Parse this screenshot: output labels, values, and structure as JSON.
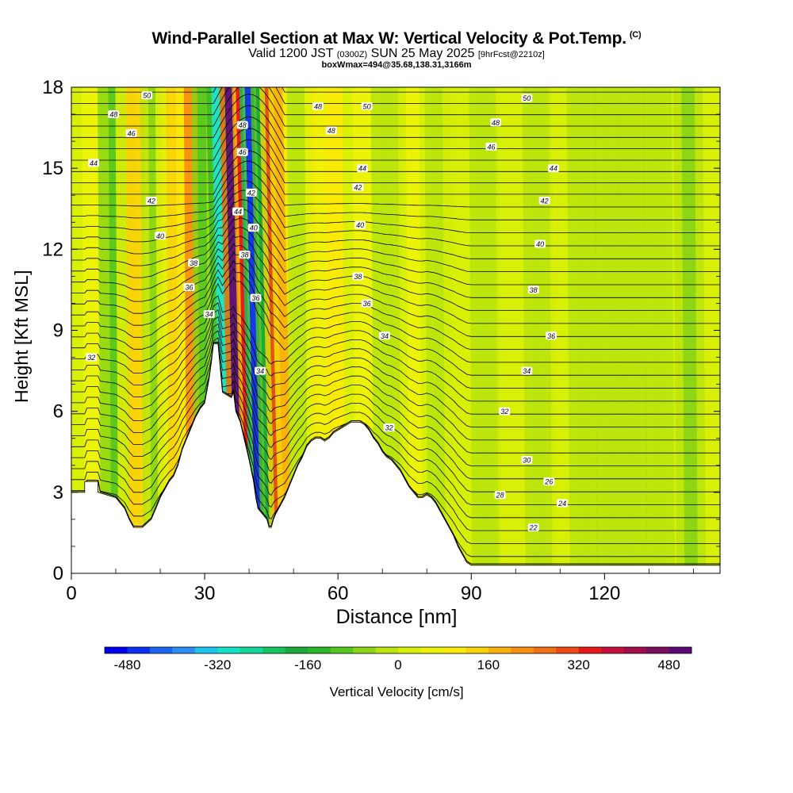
{
  "chart_data": {
    "type": "heatmap",
    "title": "Wind-Parallel Section at Max W: Vertical Velocity & Pot.Temp.",
    "title_mark": "(C)",
    "subtitle": {
      "pre": "Valid 1200 JST",
      "zulu": "(0300Z)",
      "date": "SUN 25 May 2025",
      "fcst": "[9hrFcst@2210z]"
    },
    "box_note": "boxWmax=494@35.68,138.31,3166m",
    "xlabel": "Distance [nm]",
    "ylabel": "Height [Kft MSL]",
    "xlim": [
      0,
      146
    ],
    "ylim": [
      0,
      18
    ],
    "x_ticks": [
      0,
      30,
      60,
      90,
      120
    ],
    "y_ticks": [
      0,
      3,
      6,
      9,
      12,
      15,
      18
    ],
    "terrain": {
      "x": [
        0,
        3,
        3,
        6,
        6,
        10,
        12,
        13,
        14,
        16,
        18,
        19,
        20,
        21,
        22,
        23,
        24,
        25,
        26,
        27,
        28,
        29,
        30,
        31,
        31.5,
        32,
        32.5,
        33,
        34,
        36,
        36.5,
        37,
        38,
        39,
        40,
        41,
        41.5,
        42,
        43,
        44,
        44.5,
        45,
        45.5,
        46,
        47,
        48,
        49,
        50,
        51,
        52,
        53,
        54,
        55,
        56,
        57,
        58,
        59,
        60,
        61,
        62,
        63,
        64,
        65,
        66,
        67,
        68,
        69,
        70,
        71,
        72,
        73,
        74,
        75,
        76,
        77,
        78,
        79,
        80,
        81,
        82,
        83,
        84,
        85,
        86,
        87,
        88,
        89,
        90,
        91,
        95,
        100,
        105,
        110,
        115,
        120,
        125,
        128,
        129,
        130,
        131,
        132,
        133,
        134,
        135,
        136,
        137,
        138,
        139,
        140,
        141,
        146
      ],
      "y": [
        3.0,
        3.0,
        3.4,
        3.4,
        3.0,
        2.8,
        2.4,
        2.0,
        1.7,
        1.7,
        2.0,
        2.4,
        2.8,
        3.1,
        3.4,
        3.6,
        4.0,
        4.6,
        5.0,
        5.4,
        5.8,
        6.1,
        6.3,
        7.2,
        7.8,
        8.5,
        8.5,
        8.5,
        6.7,
        6.5,
        6.7,
        6.0,
        5.6,
        4.9,
        4.2,
        3.4,
        2.8,
        2.4,
        2.2,
        2.0,
        1.7,
        1.7,
        2.0,
        2.2,
        2.5,
        2.8,
        3.2,
        3.6,
        4.0,
        4.3,
        4.7,
        4.9,
        5.0,
        5.0,
        4.9,
        5.0,
        5.2,
        5.3,
        5.4,
        5.5,
        5.6,
        5.6,
        5.6,
        5.5,
        5.3,
        5.0,
        4.8,
        4.5,
        4.3,
        4.2,
        4.0,
        3.8,
        3.5,
        3.2,
        3.0,
        2.8,
        2.8,
        2.9,
        2.8,
        2.6,
        2.3,
        2.0,
        1.7,
        1.4,
        1.0,
        0.7,
        0.4,
        0.3,
        0.3,
        0.3,
        0.3,
        0.3,
        0.3,
        0.3,
        0.3,
        0.3,
        0.3,
        0.3,
        0.3,
        0.3,
        0.3,
        0.3,
        0.3,
        0.3,
        0.3,
        0.3,
        0.3,
        0.3,
        0.3,
        0.3,
        0.3,
        0.3,
        0.3
      ]
    },
    "velocity_bands": [
      {
        "x": 3,
        "w": 4,
        "value": 40
      },
      {
        "x": 9,
        "w": 4,
        "value": -110
      },
      {
        "x": 13,
        "w": 4,
        "value": 150
      },
      {
        "x": 18,
        "w": 3,
        "value": -60
      },
      {
        "x": 22,
        "w": 4,
        "value": 120
      },
      {
        "x": 26,
        "w": 3,
        "value": 200
      },
      {
        "x": 29,
        "w": 2,
        "value": -120
      },
      {
        "x": 34,
        "w": 2,
        "value": -300
      },
      {
        "x": 37,
        "w": 2,
        "value": 480
      },
      {
        "x": 39.5,
        "w": 1.5,
        "value": 330
      },
      {
        "x": 41.5,
        "w": 2,
        "value": -460
      },
      {
        "x": 44,
        "w": 2,
        "value": -200
      },
      {
        "x": 46,
        "w": 2,
        "value": 300
      },
      {
        "x": 48,
        "w": 2,
        "value": 180
      },
      {
        "x": 51,
        "w": 3,
        "value": -40
      },
      {
        "x": 55,
        "w": 3,
        "value": 80
      },
      {
        "x": 58,
        "w": 4,
        "value": 90
      },
      {
        "x": 64,
        "w": 4,
        "value": 50
      },
      {
        "x": 70,
        "w": 3,
        "value": -20
      },
      {
        "x": 76,
        "w": 3,
        "value": 40
      },
      {
        "x": 82,
        "w": 3,
        "value": -30
      },
      {
        "x": 86,
        "w": 3,
        "value": 20
      },
      {
        "x": 92,
        "w": 3,
        "value": -40
      },
      {
        "x": 98,
        "w": 3,
        "value": 20
      },
      {
        "x": 104,
        "w": 3,
        "value": -40
      },
      {
        "x": 110,
        "w": 3,
        "value": 20
      },
      {
        "x": 114,
        "w": 3,
        "value": -30
      },
      {
        "x": 120,
        "w": 3,
        "value": -20
      },
      {
        "x": 125,
        "w": 3,
        "value": -40
      },
      {
        "x": 131,
        "w": 3,
        "value": -20
      },
      {
        "x": 138,
        "w": 3,
        "value": -50
      }
    ],
    "theta_contours": [
      {
        "base": 4.2,
        "label": "26",
        "lx": 96,
        "rx": 108,
        "ry": 2.7
      },
      {
        "base": 5.0,
        "label": "32",
        "lx": 72,
        "rx": 97,
        "ry": 5.7
      },
      {
        "base": 6.0,
        "label": "32",
        "lx": 74,
        "rx": 97,
        "ry": 5.7
      },
      {
        "base": 8.0,
        "label": "32",
        "lx": 4,
        "rx": 103,
        "ry": 8.1
      },
      {
        "base": 9.0,
        "label": "34",
        "lx": 28,
        "rx": 102,
        "ry": 7.3
      },
      {
        "base": 10.2,
        "label": "36",
        "lx": 28,
        "rx": 108,
        "ry": 8.5
      },
      {
        "base": 11.0,
        "label": "38",
        "lx": 28,
        "rx": 108,
        "ry": 9.3
      },
      {
        "base": 12.5,
        "label": "40",
        "lx": 20,
        "rx": 105,
        "ry": 11.6
      },
      {
        "base": 13.8,
        "label": "42",
        "lx": 18,
        "rx": 106,
        "ry": 13.5
      },
      {
        "base": 15.2,
        "label": "44",
        "lx": 5,
        "rx": 108,
        "ry": 15.1
      },
      {
        "base": 16.3,
        "label": "46",
        "lx": 13,
        "rx": 94,
        "ry": 15.8
      },
      {
        "base": 17.0,
        "label": "48",
        "lx": 9,
        "rx": 95,
        "ry": 16.5
      },
      {
        "base": 17.7,
        "label": "50",
        "lx": 16,
        "rx": 101,
        "ry": 17.7
      }
    ],
    "contour_labels": [
      {
        "text": "48",
        "x": 9.5,
        "y": 17.0
      },
      {
        "text": "50",
        "x": 17,
        "y": 17.7
      },
      {
        "text": "46",
        "x": 13.5,
        "y": 16.3
      },
      {
        "text": "44",
        "x": 5,
        "y": 15.2
      },
      {
        "text": "42",
        "x": 18,
        "y": 13.8
      },
      {
        "text": "40",
        "x": 20,
        "y": 12.5
      },
      {
        "text": "38",
        "x": 27.5,
        "y": 11.5
      },
      {
        "text": "36",
        "x": 26.5,
        "y": 10.6
      },
      {
        "text": "34",
        "x": 31,
        "y": 9.6
      },
      {
        "text": "32",
        "x": 4.5,
        "y": 8.0
      },
      {
        "text": "48",
        "x": 38.5,
        "y": 16.6
      },
      {
        "text": "46",
        "x": 38.5,
        "y": 15.6
      },
      {
        "text": "42",
        "x": 40.5,
        "y": 14.1
      },
      {
        "text": "44",
        "x": 37.5,
        "y": 13.4
      },
      {
        "text": "40",
        "x": 41,
        "y": 12.8
      },
      {
        "text": "38",
        "x": 39,
        "y": 11.8
      },
      {
        "text": "36",
        "x": 41.5,
        "y": 10.2
      },
      {
        "text": "34",
        "x": 42.5,
        "y": 7.5
      },
      {
        "text": "48",
        "x": 55.5,
        "y": 17.3
      },
      {
        "text": "50",
        "x": 66.5,
        "y": 17.3
      },
      {
        "text": "48",
        "x": 58.5,
        "y": 16.4
      },
      {
        "text": "44",
        "x": 65.5,
        "y": 15.0
      },
      {
        "text": "42",
        "x": 64.5,
        "y": 14.3
      },
      {
        "text": "40",
        "x": 65,
        "y": 12.9
      },
      {
        "text": "38",
        "x": 64.5,
        "y": 11.0
      },
      {
        "text": "36",
        "x": 66.5,
        "y": 10.0
      },
      {
        "text": "34",
        "x": 70.5,
        "y": 8.8
      },
      {
        "text": "32",
        "x": 71.5,
        "y": 5.4
      },
      {
        "text": "50",
        "x": 102.5,
        "y": 17.6
      },
      {
        "text": "48",
        "x": 95.5,
        "y": 16.7
      },
      {
        "text": "46",
        "x": 94.5,
        "y": 15.8
      },
      {
        "text": "44",
        "x": 108.5,
        "y": 15.0
      },
      {
        "text": "42",
        "x": 106.5,
        "y": 13.8
      },
      {
        "text": "40",
        "x": 105.5,
        "y": 12.2
      },
      {
        "text": "38",
        "x": 104,
        "y": 10.5
      },
      {
        "text": "36",
        "x": 108,
        "y": 8.8
      },
      {
        "text": "34",
        "x": 102.5,
        "y": 7.5
      },
      {
        "text": "32",
        "x": 97.5,
        "y": 6.0
      },
      {
        "text": "30",
        "x": 102.5,
        "y": 4.2
      },
      {
        "text": "26",
        "x": 107.5,
        "y": 3.4
      },
      {
        "text": "28",
        "x": 96.5,
        "y": 2.9
      },
      {
        "text": "24",
        "x": 110.5,
        "y": 2.6
      },
      {
        "text": "22",
        "x": 104,
        "y": 1.7
      }
    ],
    "colorbar": {
      "label": "Vertical Velocity [cm/s]",
      "min": -520,
      "max": 520,
      "step": 40,
      "tick_values": [
        -480,
        -320,
        -160,
        0,
        160,
        320,
        480
      ],
      "tick_labels": [
        "-480",
        "-320",
        "-160",
        "0",
        "160",
        "320",
        "480"
      ],
      "colors": [
        "#0000ee",
        "#0a2ff0",
        "#1c63f2",
        "#2a8ef4",
        "#1fc4ec",
        "#16e2c8",
        "#12d69a",
        "#14c45c",
        "#1aa93a",
        "#2ab62a",
        "#55c61d",
        "#8ad414",
        "#b9e40c",
        "#d8ef06",
        "#eef206",
        "#fbea06",
        "#fbd406",
        "#fab10a",
        "#f79010",
        "#f26e14",
        "#ee4a16",
        "#e61818",
        "#c4103a",
        "#a00c4c",
        "#7a0e5e",
        "#5a0a76"
      ]
    }
  }
}
